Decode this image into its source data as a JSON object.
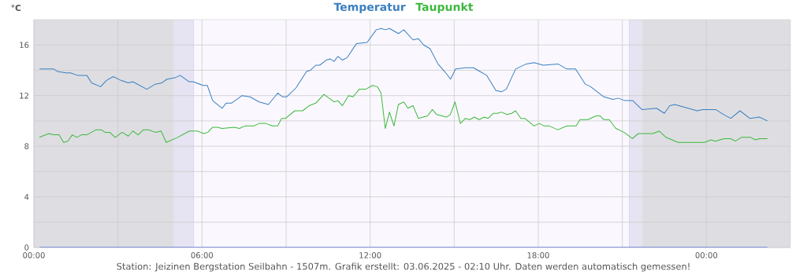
{
  "chart_data": {
    "type": "line",
    "ylabel": "°C",
    "annotations": [
      "Station: Jeizinen Bergstation Seilbahn - 1507m. Grafik erstellt: 03.06.2025 - 02:10 Uhr. Daten werden automatisch gemessen!"
    ],
    "xlim": [
      0,
      27
    ],
    "xticks": [
      {
        "value": 0,
        "label": "00:00"
      },
      {
        "value": 3,
        "label": null
      },
      {
        "value": 6,
        "label": "06:00"
      },
      {
        "value": 9,
        "label": null
      },
      {
        "value": 12,
        "label": "12:00"
      },
      {
        "value": 15,
        "label": null
      },
      {
        "value": 18,
        "label": "18:00"
      },
      {
        "value": 21,
        "label": null
      },
      {
        "value": 24,
        "label": "00:00"
      }
    ],
    "ylim": [
      0,
      18
    ],
    "yticks": [
      0,
      {
        "value": 2,
        "label": null
      },
      4,
      {
        "value": 6,
        "label": null
      },
      8,
      {
        "value": 10,
        "label": null
      },
      12,
      {
        "value": 14,
        "label": null
      },
      16
    ],
    "grid": true,
    "legend": "top",
    "bands": [
      {
        "axis": "x",
        "from": 0,
        "to": 5.0,
        "color": "#dedee2"
      },
      {
        "axis": "x",
        "from": 5.0,
        "to": 5.7,
        "color": "#e6e3f2"
      },
      {
        "axis": "x",
        "from": 21.25,
        "to": 21.7,
        "color": "#e6e3f2"
      },
      {
        "axis": "x",
        "from": 21.7,
        "to": 27,
        "color": "#dedee2"
      }
    ],
    "ref_lines": [
      {
        "axis": "x",
        "value": 5.7,
        "color": "#dcd6ee"
      },
      {
        "axis": "x",
        "value": 21.25,
        "color": "#dcd6ee"
      }
    ],
    "series": [
      {
        "name": "Temperatur",
        "color": "#3a7fc0",
        "x": [
          0.2,
          0.71,
          0.85,
          1.14,
          1.3,
          1.56,
          1.89,
          2.06,
          2.38,
          2.59,
          2.83,
          3.11,
          3.37,
          3.53,
          4.03,
          4.33,
          4.56,
          4.75,
          5.03,
          5.22,
          5.53,
          5.69,
          6.04,
          6.19,
          6.38,
          6.72,
          6.86,
          7.05,
          7.43,
          7.71,
          8.04,
          8.37,
          8.7,
          8.88,
          9.02,
          9.35,
          9.73,
          9.87,
          10.06,
          10.2,
          10.43,
          10.57,
          10.71,
          10.85,
          11.01,
          11.18,
          11.51,
          11.89,
          12.22,
          12.4,
          12.54,
          12.69,
          13.01,
          13.2,
          13.53,
          13.72,
          13.91,
          14.14,
          14.42,
          14.66,
          14.87,
          15.05,
          15.41,
          15.69,
          15.92,
          16.16,
          16.49,
          16.68,
          16.86,
          17.19,
          17.57,
          17.85,
          18.18,
          18.7,
          19.02,
          19.33,
          19.68,
          19.87,
          20.34,
          20.67,
          20.85,
          21.09,
          21.37,
          21.7,
          22.22,
          22.5,
          22.69,
          22.87,
          23.67,
          23.86,
          24.33,
          24.62,
          24.87,
          25.2,
          25.55,
          25.89,
          26.18
        ],
        "values": [
          14.1,
          14.1,
          13.9,
          13.8,
          13.8,
          13.6,
          13.6,
          13.0,
          12.7,
          13.2,
          13.5,
          13.2,
          13.0,
          13.1,
          12.5,
          12.9,
          13.0,
          13.3,
          13.4,
          13.6,
          13.1,
          13.1,
          12.8,
          12.8,
          11.6,
          11.0,
          11.4,
          11.4,
          12.0,
          11.9,
          11.5,
          11.3,
          12.2,
          11.9,
          11.9,
          12.6,
          13.9,
          14.0,
          14.4,
          14.4,
          14.8,
          14.9,
          14.7,
          15.1,
          14.8,
          15.0,
          16.1,
          16.2,
          17.2,
          17.3,
          17.2,
          17.3,
          16.9,
          17.2,
          16.4,
          16.5,
          16.0,
          15.7,
          14.5,
          13.9,
          13.3,
          14.1,
          14.2,
          14.2,
          13.9,
          13.6,
          12.4,
          12.3,
          12.5,
          14.1,
          14.5,
          14.6,
          14.4,
          14.5,
          14.1,
          14.1,
          12.9,
          12.7,
          11.9,
          11.7,
          11.8,
          11.6,
          11.6,
          10.9,
          11.0,
          10.6,
          11.2,
          11.3,
          10.8,
          10.9,
          10.9,
          10.5,
          10.2,
          10.8,
          10.2,
          10.3,
          10.0
        ]
      },
      {
        "name": "Taupunkt",
        "color": "#3cb83c",
        "x": [
          0.2,
          0.53,
          0.71,
          0.9,
          1.06,
          1.21,
          1.37,
          1.53,
          1.7,
          1.89,
          2.22,
          2.4,
          2.54,
          2.71,
          2.9,
          3.15,
          3.37,
          3.53,
          3.72,
          3.91,
          4.09,
          4.33,
          4.54,
          4.72,
          5.13,
          5.55,
          5.83,
          6.07,
          6.21,
          6.38,
          6.54,
          6.72,
          7.15,
          7.34,
          7.52,
          7.85,
          8.04,
          8.27,
          8.51,
          8.7,
          8.84,
          8.98,
          9.31,
          9.59,
          9.82,
          10.06,
          10.35,
          10.71,
          10.85,
          11.01,
          11.23,
          11.39,
          11.61,
          11.84,
          12.08,
          12.26,
          12.39,
          12.54,
          12.69,
          12.85,
          13.01,
          13.2,
          13.35,
          13.53,
          13.72,
          14.05,
          14.22,
          14.38,
          14.72,
          14.86,
          15.03,
          15.22,
          15.4,
          15.56,
          15.72,
          15.89,
          16.08,
          16.21,
          16.4,
          16.55,
          16.68,
          16.89,
          17.05,
          17.19,
          17.38,
          17.52,
          17.85,
          18.04,
          18.21,
          18.39,
          18.7,
          19.02,
          19.35,
          19.49,
          19.77,
          20.06,
          20.2,
          20.34,
          20.53,
          20.77,
          21.06,
          21.36,
          21.57,
          21.81,
          22.09,
          22.32,
          22.56,
          22.99,
          23.27,
          23.6,
          23.93,
          24.17,
          24.31,
          24.64,
          24.87,
          25.03,
          25.25,
          25.58,
          25.75,
          25.89,
          26.18
        ],
        "values": [
          8.7,
          9.0,
          8.9,
          8.9,
          8.3,
          8.4,
          8.9,
          8.7,
          8.9,
          8.9,
          9.3,
          9.3,
          9.1,
          9.1,
          8.7,
          9.1,
          8.8,
          9.2,
          8.9,
          9.3,
          9.3,
          9.1,
          9.2,
          8.3,
          8.7,
          9.2,
          9.2,
          9.0,
          9.1,
          9.5,
          9.5,
          9.4,
          9.5,
          9.4,
          9.6,
          9.6,
          9.8,
          9.8,
          9.6,
          9.6,
          10.2,
          10.2,
          10.8,
          10.8,
          11.2,
          11.4,
          12.1,
          11.5,
          11.6,
          11.2,
          12.0,
          11.9,
          12.5,
          12.5,
          12.8,
          12.7,
          12.2,
          9.4,
          10.7,
          9.6,
          11.3,
          11.5,
          11.0,
          11.2,
          10.2,
          10.4,
          10.9,
          10.5,
          10.3,
          10.5,
          11.5,
          9.8,
          10.2,
          10.1,
          10.3,
          10.1,
          10.3,
          10.2,
          10.6,
          10.6,
          10.7,
          10.5,
          10.6,
          10.8,
          10.2,
          10.2,
          9.6,
          9.8,
          9.6,
          9.6,
          9.3,
          9.6,
          9.6,
          10.1,
          10.1,
          10.4,
          10.4,
          10.1,
          10.1,
          9.4,
          9.1,
          8.6,
          9.0,
          9.0,
          9.0,
          9.2,
          8.7,
          8.3,
          8.3,
          8.3,
          8.3,
          8.5,
          8.4,
          8.6,
          8.6,
          8.4,
          8.7,
          8.7,
          8.5,
          8.6,
          8.6
        ]
      },
      {
        "color": "#3355dd",
        "x": [
          0.2,
          26.18
        ],
        "values": [
          0,
          0
        ]
      }
    ]
  }
}
